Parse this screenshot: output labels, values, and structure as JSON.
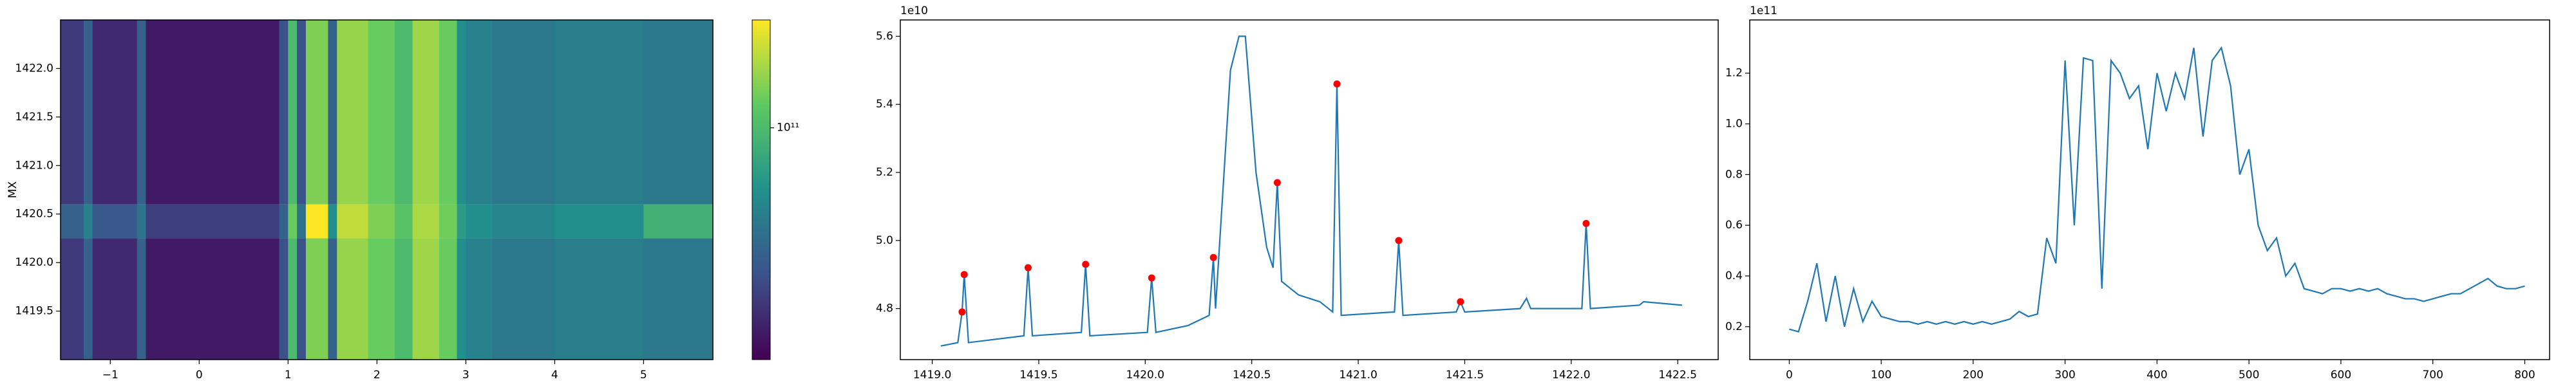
{
  "chart_data": [
    {
      "type": "heatmap",
      "ylabel": "MX",
      "x_edges": [
        -1.56,
        -1.3,
        -1.2,
        -0.7,
        -0.6,
        0.9,
        1.0,
        1.1,
        1.2,
        1.45,
        1.55,
        1.9,
        2.2,
        2.4,
        2.7,
        2.9,
        3.0,
        3.3,
        4.0,
        5.0,
        5.78
      ],
      "y_edges": [
        1419.0,
        1420.25,
        1420.6,
        1422.5
      ],
      "z": [
        [
          55000000000.0,
          65000000000.0,
          52000000000.0,
          65000000000.0,
          49000000000.0,
          60000000000.0,
          100000000000.0,
          60000000000.0,
          115000000000.0,
          65000000000.0,
          120000000000.0,
          110000000000.0,
          100000000000.0,
          122000000000.0,
          110000000000.0,
          80000000000.0,
          75000000000.0,
          72000000000.0,
          74000000000.0,
          72000000000.0
        ],
        [
          65000000000.0,
          75000000000.0,
          62000000000.0,
          70000000000.0,
          56000000000.0,
          65000000000.0,
          110000000000.0,
          70000000000.0,
          145000000000.0,
          80000000000.0,
          130000000000.0,
          115000000000.0,
          105000000000.0,
          125000000000.0,
          112000000000.0,
          85000000000.0,
          80000000000.0,
          76000000000.0,
          80000000000.0,
          95000000000.0
        ],
        [
          55000000000.0,
          65000000000.0,
          52000000000.0,
          65000000000.0,
          49000000000.0,
          60000000000.0,
          100000000000.0,
          60000000000.0,
          115000000000.0,
          65000000000.0,
          120000000000.0,
          110000000000.0,
          100000000000.0,
          122000000000.0,
          110000000000.0,
          80000000000.0,
          75000000000.0,
          72000000000.0,
          74000000000.0,
          72000000000.0
        ]
      ],
      "colorscale": "viridis",
      "color_log": true,
      "clim": [
        45000000000.0,
        145000000000.0
      ],
      "colorbar_ticks": [
        {
          "value": 100000000000.0,
          "label": "10¹¹"
        }
      ],
      "xlim": [
        -1.56,
        5.78
      ],
      "ylim": [
        1419.0,
        1422.5
      ],
      "xticks": [
        {
          "value": -1,
          "label": "−1"
        },
        0,
        1,
        2,
        3,
        4,
        5
      ],
      "yticks": [
        1419.5,
        {
          "value": 1420,
          "label": "1420.0"
        },
        1420.5,
        {
          "value": 1421,
          "label": "1421.0"
        },
        1421.5,
        {
          "value": 1422,
          "label": "1422.0"
        }
      ]
    },
    {
      "type": "line",
      "offset_label": "1e10",
      "color": "#1f77b4",
      "x": [
        1419.04,
        1419.12,
        1419.14,
        1419.15,
        1419.17,
        1419.43,
        1419.45,
        1419.47,
        1419.7,
        1419.72,
        1419.74,
        1420.01,
        1420.03,
        1420.05,
        1420.2,
        1420.3,
        1420.32,
        1420.33,
        1420.37,
        1420.4,
        1420.44,
        1420.47,
        1420.52,
        1420.57,
        1420.6,
        1420.62,
        1420.64,
        1420.72,
        1420.82,
        1420.88,
        1420.9,
        1420.92,
        1421.17,
        1421.19,
        1421.21,
        1421.46,
        1421.48,
        1421.5,
        1421.76,
        1421.79,
        1421.81,
        1422.05,
        1422.07,
        1422.09,
        1422.32,
        1422.34,
        1422.52
      ],
      "values": [
        4.69,
        4.7,
        4.79,
        4.9,
        4.7,
        4.72,
        4.92,
        4.72,
        4.73,
        4.93,
        4.72,
        4.73,
        4.89,
        4.73,
        4.75,
        4.78,
        4.95,
        4.8,
        5.2,
        5.5,
        5.6,
        5.6,
        5.2,
        4.98,
        4.92,
        5.17,
        4.88,
        4.84,
        4.82,
        4.79,
        5.46,
        4.78,
        4.79,
        5.0,
        4.78,
        4.79,
        4.82,
        4.79,
        4.8,
        4.83,
        4.8,
        4.8,
        5.05,
        4.8,
        4.81,
        4.82,
        4.81
      ],
      "peaks": {
        "color": "#ff0000",
        "x": [
          1419.14,
          1419.15,
          1419.45,
          1419.72,
          1420.03,
          1420.32,
          1420.62,
          1420.9,
          1421.19,
          1421.48,
          1422.07
        ],
        "values": [
          4.79,
          4.9,
          4.92,
          4.93,
          4.89,
          4.95,
          5.17,
          5.46,
          5.0,
          4.82,
          5.05
        ]
      },
      "xlim": [
        1418.85,
        1422.69
      ],
      "ylim": [
        4.65,
        5.648
      ],
      "xticks": [
        {
          "value": 1419,
          "label": "1419.0"
        },
        1419.5,
        {
          "value": 1420,
          "label": "1420.0"
        },
        1420.5,
        {
          "value": 1421,
          "label": "1421.0"
        },
        1421.5,
        {
          "value": 1422,
          "label": "1422.0"
        },
        1422.5
      ],
      "yticks": [
        4.8,
        {
          "value": 5,
          "label": "5.0"
        },
        5.2,
        5.4,
        5.6
      ]
    },
    {
      "type": "line",
      "offset_label": "1e11",
      "color": "#1f77b4",
      "x": [
        0,
        10,
        20,
        30,
        40,
        50,
        60,
        70,
        80,
        90,
        100,
        110,
        120,
        130,
        140,
        150,
        160,
        170,
        180,
        190,
        200,
        210,
        220,
        230,
        240,
        250,
        260,
        270,
        280,
        290,
        300,
        310,
        320,
        330,
        340,
        350,
        360,
        370,
        380,
        390,
        400,
        410,
        420,
        430,
        440,
        450,
        460,
        470,
        480,
        490,
        500,
        510,
        520,
        530,
        540,
        550,
        560,
        570,
        580,
        590,
        600,
        610,
        620,
        630,
        640,
        650,
        660,
        670,
        680,
        690,
        700,
        710,
        720,
        730,
        740,
        750,
        760,
        770,
        780,
        790,
        800
      ],
      "values": [
        0.19,
        0.18,
        0.3,
        0.45,
        0.22,
        0.4,
        0.2,
        0.35,
        0.22,
        0.3,
        0.24,
        0.23,
        0.22,
        0.22,
        0.21,
        0.22,
        0.21,
        0.22,
        0.21,
        0.22,
        0.21,
        0.22,
        0.21,
        0.22,
        0.23,
        0.26,
        0.24,
        0.25,
        0.55,
        0.45,
        1.25,
        0.6,
        1.26,
        1.25,
        0.35,
        1.25,
        1.2,
        1.1,
        1.15,
        0.9,
        1.2,
        1.05,
        1.2,
        1.1,
        1.3,
        0.95,
        1.25,
        1.3,
        1.15,
        0.8,
        0.9,
        0.6,
        0.5,
        0.55,
        0.4,
        0.45,
        0.35,
        0.34,
        0.33,
        0.35,
        0.35,
        0.34,
        0.35,
        0.34,
        0.35,
        0.33,
        0.32,
        0.31,
        0.31,
        0.3,
        0.31,
        0.32,
        0.33,
        0.33,
        0.35,
        0.37,
        0.39,
        0.36,
        0.35,
        0.35,
        0.36
      ],
      "xlim": [
        -43,
        827
      ],
      "ylim": [
        0.07,
        1.41
      ],
      "xticks": [
        0,
        100,
        200,
        300,
        400,
        500,
        600,
        700,
        800
      ],
      "yticks": [
        0.2,
        0.4,
        0.6,
        0.8,
        {
          "value": 1,
          "label": "1.0"
        },
        1.2
      ]
    }
  ]
}
